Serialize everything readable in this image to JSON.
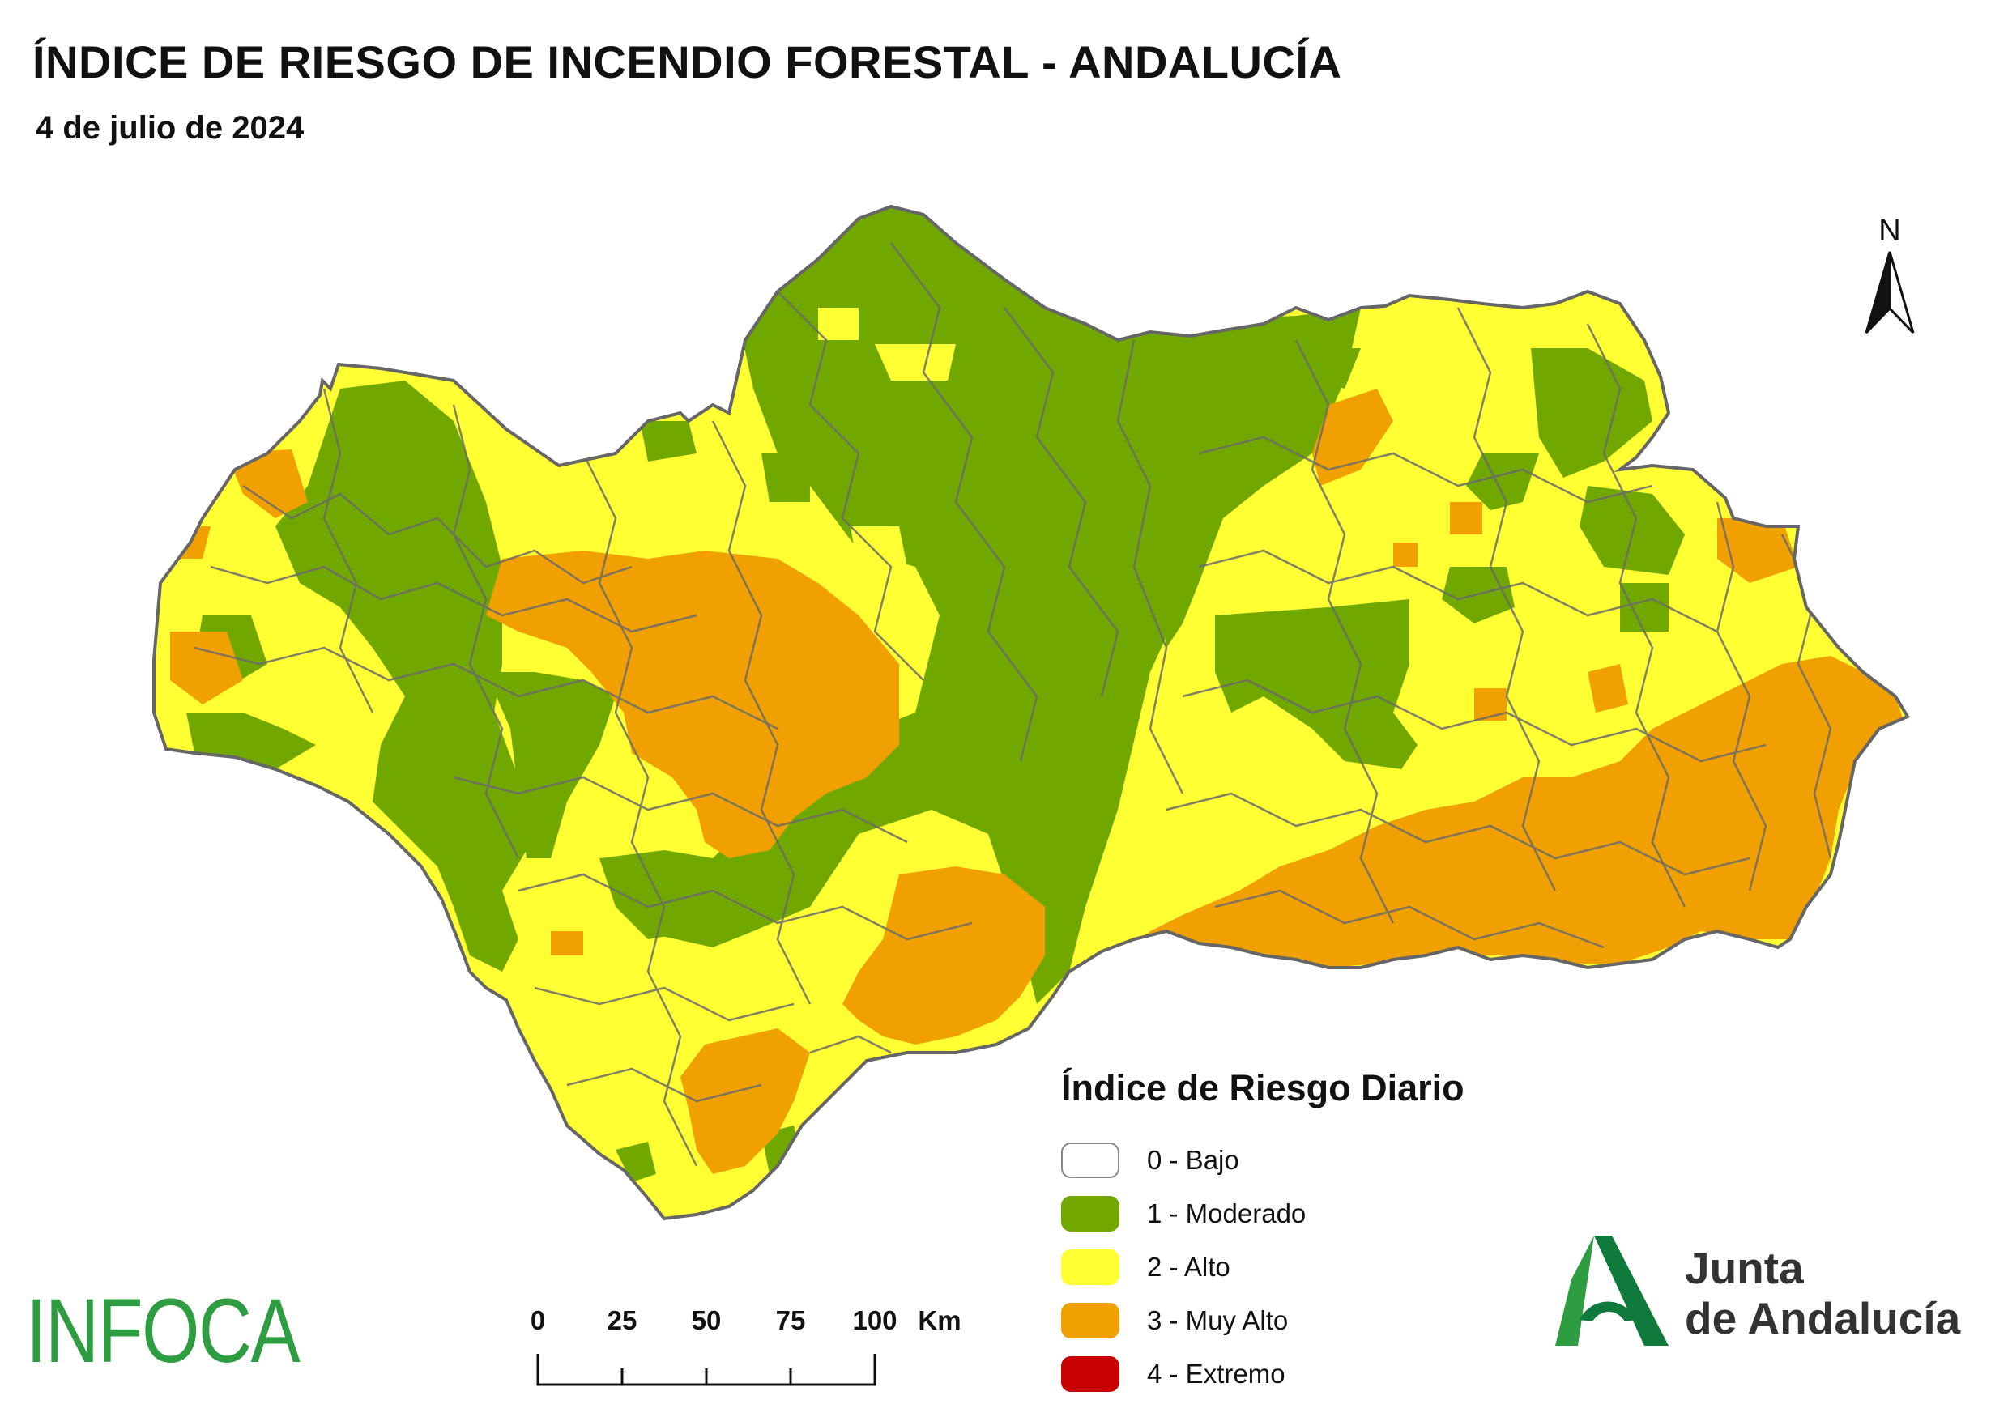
{
  "title": "ÍNDICE DE RIESGO DE INCENDIO FORESTAL - ANDALUCÍA",
  "subtitle": "4 de julio de 2024",
  "north_arrow": {
    "label": "N",
    "icon": "north-arrow-icon"
  },
  "legend": {
    "title": "Índice de Riesgo Diario",
    "items": [
      {
        "label": "0 - Bajo",
        "color": "#ffffff"
      },
      {
        "label": "1 - Moderado",
        "color": "#70a800"
      },
      {
        "label": "2 - Alto",
        "color": "#ffff33"
      },
      {
        "label": "3 - Muy Alto",
        "color": "#f0a000"
      },
      {
        "label": "4 - Extremo",
        "color": "#c80000"
      }
    ]
  },
  "scale_bar": {
    "ticks": [
      "0",
      "25",
      "50",
      "75",
      "100"
    ],
    "unit": "Km"
  },
  "logos": {
    "infoca": "INFOCA",
    "junta_line1": "Junta",
    "junta_line2": "de Andalucía"
  },
  "colors": {
    "moderado": "#70a800",
    "alto": "#ffff33",
    "muy_alto": "#f0a000",
    "border": "#6b6b6b",
    "infoca_green": "#2e9c40",
    "junta_green": "#0f7a3c"
  }
}
